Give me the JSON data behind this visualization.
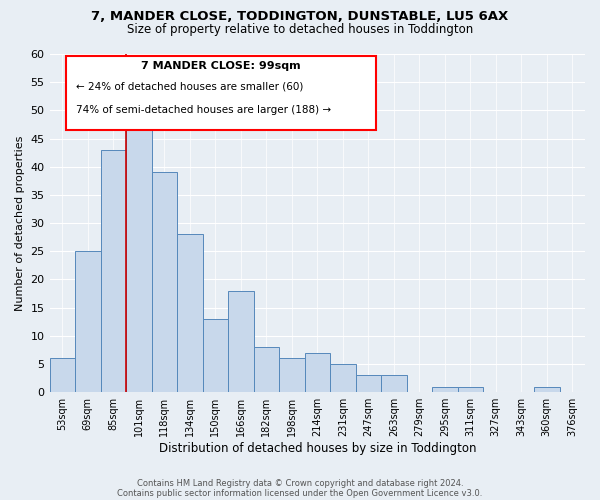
{
  "title": "7, MANDER CLOSE, TODDINGTON, DUNSTABLE, LU5 6AX",
  "subtitle": "Size of property relative to detached houses in Toddington",
  "xlabel": "Distribution of detached houses by size in Toddington",
  "ylabel": "Number of detached properties",
  "categories": [
    "53sqm",
    "69sqm",
    "85sqm",
    "101sqm",
    "118sqm",
    "134sqm",
    "150sqm",
    "166sqm",
    "182sqm",
    "198sqm",
    "214sqm",
    "231sqm",
    "247sqm",
    "263sqm",
    "279sqm",
    "295sqm",
    "311sqm",
    "327sqm",
    "343sqm",
    "360sqm",
    "376sqm"
  ],
  "values": [
    6,
    25,
    43,
    47,
    39,
    28,
    13,
    18,
    8,
    6,
    7,
    5,
    3,
    3,
    0,
    1,
    1,
    0,
    0,
    1,
    0
  ],
  "bar_color": "#c8d8eb",
  "bar_edge_color": "#5588bb",
  "ylim": [
    0,
    60
  ],
  "yticks": [
    0,
    5,
    10,
    15,
    20,
    25,
    30,
    35,
    40,
    45,
    50,
    55,
    60
  ],
  "annotation_title": "7 MANDER CLOSE: 99sqm",
  "annotation_line1": "← 24% of detached houses are smaller (60)",
  "annotation_line2": "74% of semi-detached houses are larger (188) →",
  "footer1": "Contains HM Land Registry data © Crown copyright and database right 2024.",
  "footer2": "Contains public sector information licensed under the Open Government Licence v3.0.",
  "background_color": "#e8eef4",
  "grid_color": "#ffffff",
  "red_line_color": "#cc0000"
}
